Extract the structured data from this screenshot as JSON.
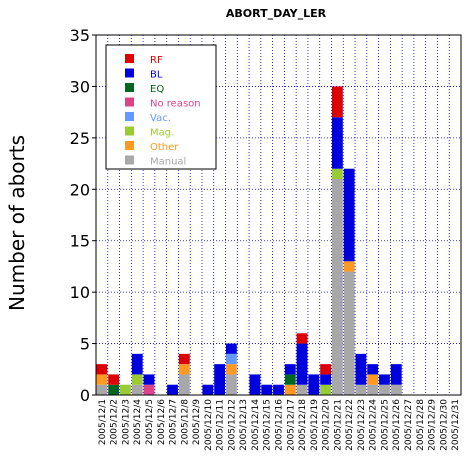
{
  "chart_data": {
    "type": "bar",
    "stacked": true,
    "title": "ABORT_DAY_LER",
    "xlabel": "",
    "ylabel": "Number of aborts",
    "ylim": [
      0,
      35
    ],
    "yticks": [
      0,
      5,
      10,
      15,
      20,
      25,
      30,
      35
    ],
    "grid": true,
    "legend_position": "top-left",
    "categories": [
      "2005/12/1",
      "2005/12/2",
      "2005/12/3",
      "2005/12/4",
      "2005/12/5",
      "2005/12/6",
      "2005/12/7",
      "2005/12/8",
      "2005/12/9",
      "2005/12/10",
      "2005/12/11",
      "2005/12/12",
      "2005/12/13",
      "2005/12/14",
      "2005/12/15",
      "2005/12/16",
      "2005/12/17",
      "2005/12/18",
      "2005/12/19",
      "2005/12/20",
      "2005/12/21",
      "2005/12/22",
      "2005/12/23",
      "2005/12/24",
      "2005/12/25",
      "2005/12/26",
      "2005/12/27",
      "2005/12/28",
      "2005/12/29",
      "2005/12/30",
      "2005/12/31"
    ],
    "series": [
      {
        "name": "Manual",
        "color": "#a8a8a8",
        "values": [
          1,
          0,
          0,
          1,
          0,
          0,
          0,
          2,
          0,
          0,
          0,
          2,
          0,
          0,
          0,
          0,
          0,
          1,
          0,
          0,
          21,
          12,
          1,
          1,
          1,
          1,
          0,
          0,
          0,
          0,
          0
        ]
      },
      {
        "name": "Other",
        "color": "#ff9922",
        "values": [
          1,
          0,
          0,
          0,
          0,
          0,
          0,
          1,
          0,
          0,
          0,
          1,
          0,
          0,
          0,
          0,
          1,
          0,
          0,
          0,
          0,
          1,
          0,
          1,
          0,
          0,
          0,
          0,
          0,
          0,
          0
        ]
      },
      {
        "name": "Mag.",
        "color": "#99cc33",
        "values": [
          0,
          0,
          1,
          1,
          0,
          0,
          0,
          0,
          0,
          0,
          0,
          0,
          0,
          0,
          0,
          0,
          0,
          0,
          0,
          1,
          1,
          0,
          0,
          0,
          0,
          0,
          0,
          0,
          0,
          0,
          0
        ]
      },
      {
        "name": "Vac.",
        "color": "#6699ff",
        "values": [
          0,
          0,
          0,
          0,
          0,
          0,
          0,
          0,
          0,
          0,
          0,
          1,
          0,
          0,
          0,
          0,
          0,
          0,
          0,
          0,
          0,
          0,
          0,
          0,
          0,
          0,
          0,
          0,
          0,
          0,
          0
        ]
      },
      {
        "name": "No reason",
        "color": "#dd4488",
        "values": [
          0,
          0,
          0,
          0,
          1,
          0,
          0,
          0,
          0,
          0,
          0,
          0,
          0,
          0,
          0,
          0,
          0,
          0,
          0,
          0,
          0,
          0,
          0,
          0,
          0,
          0,
          0,
          0,
          0,
          0,
          0
        ]
      },
      {
        "name": "EQ",
        "color": "#006622",
        "values": [
          0,
          1,
          0,
          0,
          0,
          0,
          0,
          0,
          0,
          0,
          0,
          0,
          0,
          0,
          0,
          0,
          1,
          0,
          0,
          0,
          0,
          0,
          0,
          0,
          0,
          0,
          0,
          0,
          0,
          0,
          0
        ]
      },
      {
        "name": "BL",
        "color": "#0000dd",
        "values": [
          0,
          0,
          0,
          2,
          1,
          0,
          1,
          0,
          0,
          1,
          3,
          1,
          0,
          2,
          1,
          1,
          1,
          4,
          2,
          1,
          5,
          9,
          3,
          1,
          1,
          2,
          0,
          0,
          0,
          0,
          0
        ]
      },
      {
        "name": "RF",
        "color": "#dd0000",
        "values": [
          1,
          1,
          0,
          0,
          0,
          0,
          0,
          1,
          0,
          0,
          0,
          0,
          0,
          0,
          0,
          0,
          0,
          1,
          0,
          1,
          3,
          0,
          0,
          0,
          0,
          0,
          0,
          0,
          0,
          0,
          0
        ]
      }
    ],
    "legend_order": [
      "RF",
      "BL",
      "EQ",
      "No reason",
      "Vac.",
      "Mag.",
      "Other",
      "Manual"
    ]
  }
}
